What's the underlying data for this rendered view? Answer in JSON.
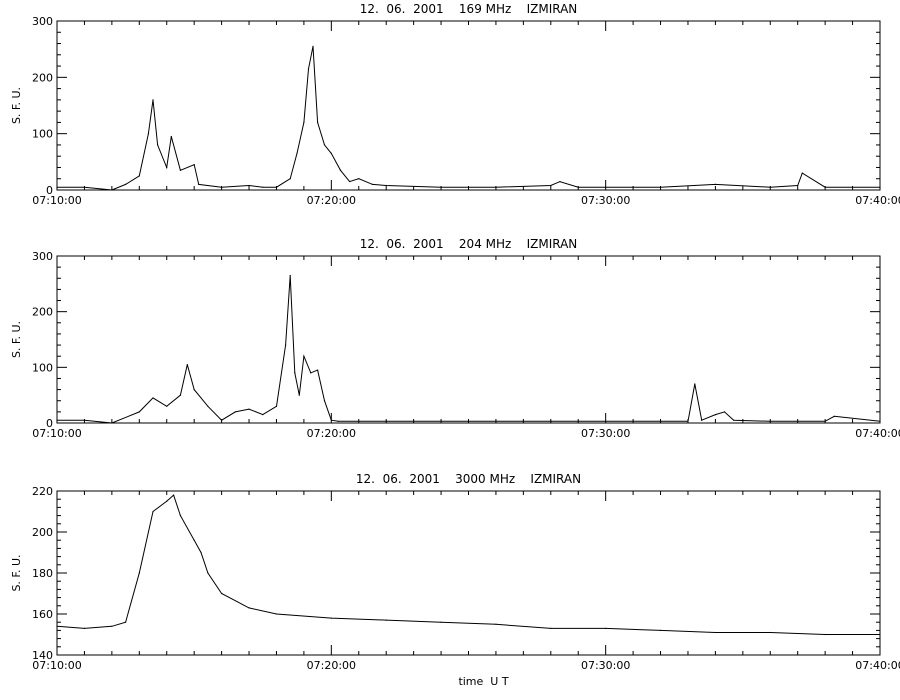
{
  "chart_data": [
    {
      "type": "line",
      "title": "12.  06.  2001    169 MHz    IZMIRAN",
      "ylabel": "S. F. U.",
      "xlabel": "",
      "xlim": [
        "07:10:00",
        "07:40:00"
      ],
      "xticks": [
        "07:10:00",
        "07:20:00",
        "07:30:00",
        "07:40:00"
      ],
      "ylim": [
        0,
        300
      ],
      "yticks": [
        "0",
        "100",
        "200",
        "300"
      ],
      "grid": false,
      "series": [
        {
          "x": [
            "07:10:00",
            "07:11:00",
            "07:12:00",
            "07:12:30",
            "07:13:00",
            "07:13:20",
            "07:13:30",
            "07:13:40",
            "07:14:00",
            "07:14:10",
            "07:14:30",
            "07:15:00",
            "07:15:10",
            "07:16:00",
            "07:17:00",
            "07:17:30",
            "07:18:00",
            "07:18:30",
            "07:18:45",
            "07:19:00",
            "07:19:10",
            "07:19:20",
            "07:19:30",
            "07:19:45",
            "07:20:00",
            "07:20:20",
            "07:20:40",
            "07:21:00",
            "07:21:30",
            "07:22:00",
            "07:24:00",
            "07:26:00",
            "07:28:00",
            "07:28:20",
            "07:29:00",
            "07:30:00",
            "07:32:00",
            "07:34:00",
            "07:36:00",
            "07:37:00",
            "07:37:10",
            "07:38:00",
            "07:40:00"
          ],
          "y": [
            5,
            5,
            0,
            10,
            25,
            100,
            160,
            80,
            40,
            95,
            35,
            45,
            10,
            5,
            8,
            5,
            5,
            20,
            65,
            120,
            215,
            255,
            120,
            80,
            65,
            35,
            15,
            20,
            10,
            8,
            5,
            5,
            8,
            15,
            5,
            5,
            5,
            10,
            5,
            8,
            30,
            5,
            5
          ]
        }
      ]
    },
    {
      "type": "line",
      "title": "12.  06.  2001    204 MHz    IZMIRAN",
      "ylabel": "S. F. U.",
      "xlabel": "",
      "xlim": [
        "07:10:00",
        "07:40:00"
      ],
      "xticks": [
        "07:10:00",
        "07:20:00",
        "07:30:00",
        "07:40:00"
      ],
      "ylim": [
        0,
        300
      ],
      "yticks": [
        "0",
        "100",
        "200",
        "300"
      ],
      "grid": false,
      "series": [
        {
          "x": [
            "07:10:00",
            "07:11:00",
            "07:12:00",
            "07:13:00",
            "07:13:30",
            "07:14:00",
            "07:14:30",
            "07:14:45",
            "07:15:00",
            "07:15:30",
            "07:16:00",
            "07:16:30",
            "07:17:00",
            "07:17:30",
            "07:18:00",
            "07:18:20",
            "07:18:30",
            "07:18:40",
            "07:18:50",
            "07:19:00",
            "07:19:15",
            "07:19:30",
            "07:19:45",
            "07:20:00",
            "07:20:15",
            "07:22:00",
            "07:25:00",
            "07:28:00",
            "07:30:00",
            "07:33:00",
            "07:33:15",
            "07:33:30",
            "07:34:00",
            "07:34:20",
            "07:34:40",
            "07:36:00",
            "07:38:00",
            "07:38:20",
            "07:40:00"
          ],
          "y": [
            5,
            5,
            0,
            20,
            45,
            30,
            50,
            105,
            60,
            30,
            5,
            20,
            25,
            15,
            30,
            140,
            265,
            90,
            50,
            120,
            90,
            95,
            40,
            5,
            3,
            3,
            3,
            3,
            3,
            3,
            70,
            5,
            15,
            20,
            5,
            3,
            3,
            12,
            3
          ]
        }
      ]
    },
    {
      "type": "line",
      "title": "12.  06.  2001    3000 MHz    IZMIRAN",
      "ylabel": "S. F. U.",
      "xlabel": "time  U T",
      "xlim": [
        "07:10:00",
        "07:40:00"
      ],
      "xticks": [
        "07:10:00",
        "07:20:00",
        "07:30:00",
        "07:40:00"
      ],
      "ylim": [
        140,
        220
      ],
      "yticks": [
        "140",
        "160",
        "180",
        "200",
        "220"
      ],
      "grid": false,
      "series": [
        {
          "x": [
            "07:10:00",
            "07:11:00",
            "07:12:00",
            "07:12:30",
            "07:13:00",
            "07:13:30",
            "07:14:00",
            "07:14:15",
            "07:14:30",
            "07:15:00",
            "07:15:15",
            "07:15:30",
            "07:16:00",
            "07:17:00",
            "07:18:00",
            "07:20:00",
            "07:22:00",
            "07:24:00",
            "07:26:00",
            "07:28:00",
            "07:30:00",
            "07:32:00",
            "07:34:00",
            "07:36:00",
            "07:38:00",
            "07:40:00"
          ],
          "y": [
            154,
            153,
            154,
            156,
            180,
            210,
            215,
            218,
            208,
            196,
            190,
            180,
            170,
            163,
            160,
            158,
            157,
            156,
            155,
            153,
            153,
            152,
            151,
            151,
            150,
            150
          ]
        }
      ]
    }
  ]
}
